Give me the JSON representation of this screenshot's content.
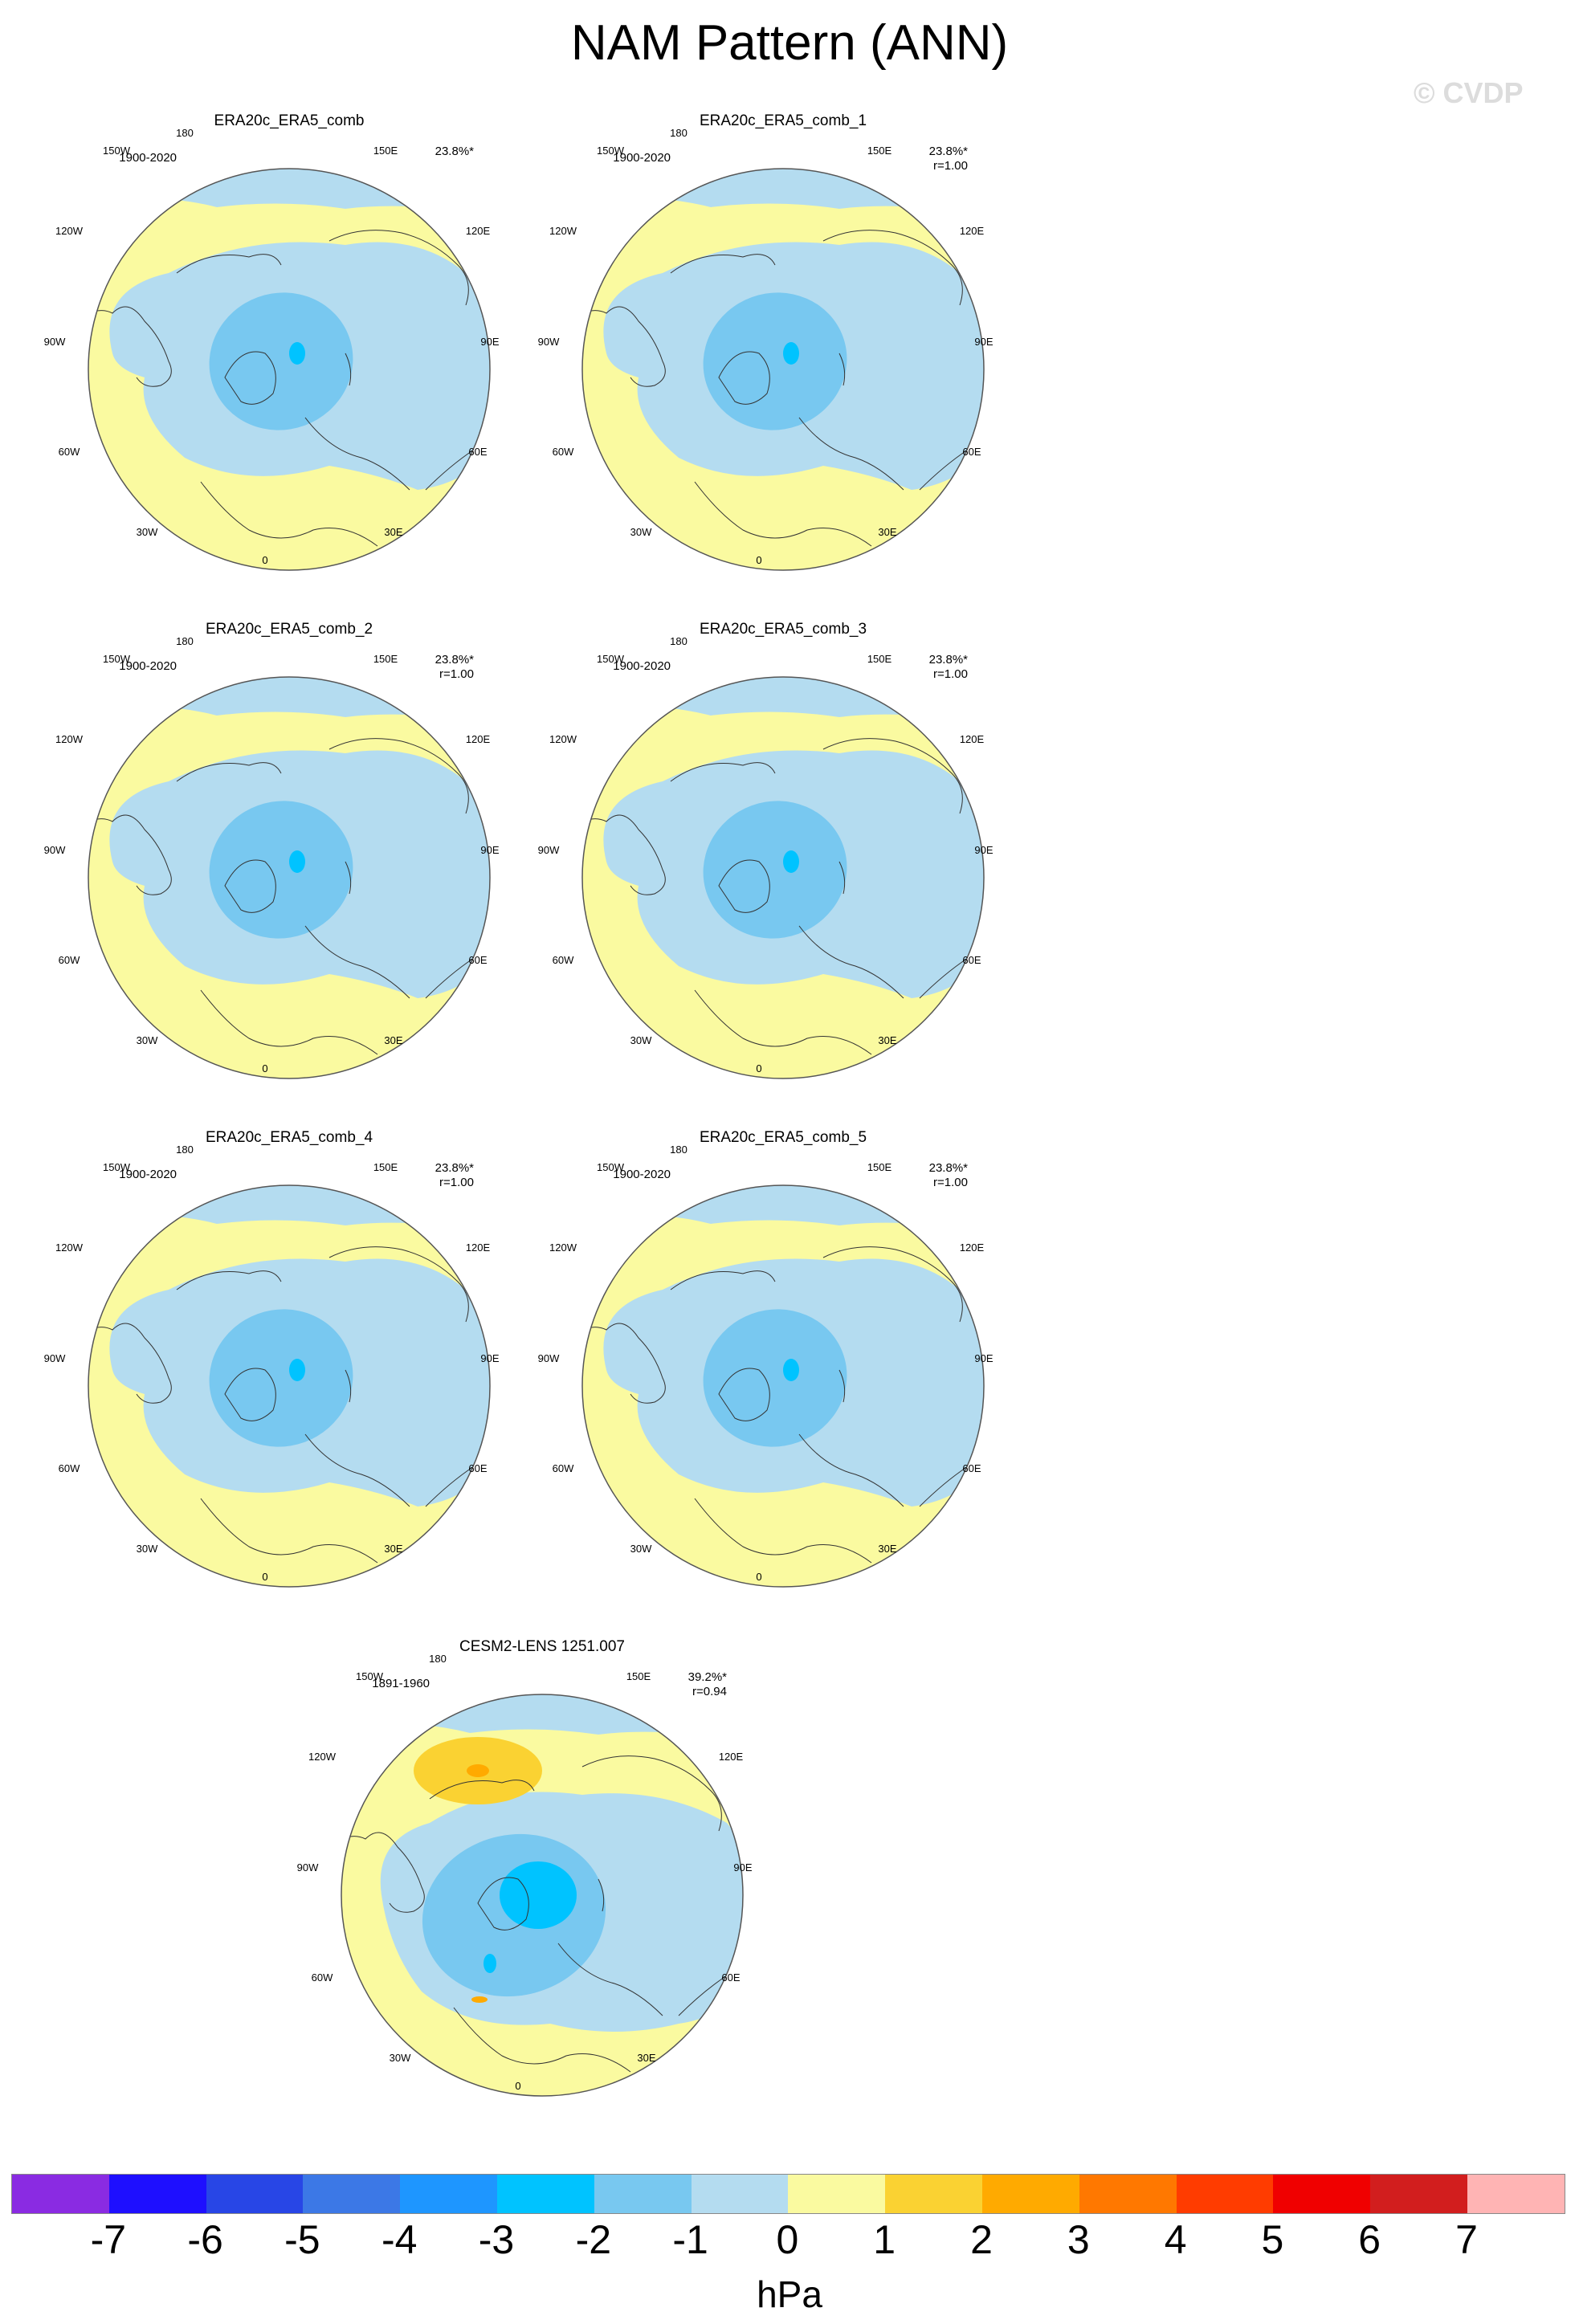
{
  "title": "NAM Pattern (ANN)",
  "watermark": "© CVDP",
  "lon_labels": {
    "l180": "180",
    "l150w": "150W",
    "l150e": "150E",
    "l120w": "120W",
    "l120e": "120E",
    "l90w": "90W",
    "l90e": "90E",
    "l60w": "60W",
    "l60e": "60E",
    "l30w": "30W",
    "l30e": "30E",
    "l0": "0"
  },
  "panels": [
    {
      "name": "ERA20c_ERA5_comb",
      "years": "1900-2020",
      "pct": "23.8%*",
      "r": "",
      "variant": "era"
    },
    {
      "name": "ERA20c_ERA5_comb_1",
      "years": "1900-2020",
      "pct": "23.8%*",
      "r": "r=1.00",
      "variant": "era"
    },
    {
      "name": "ERA20c_ERA5_comb_2",
      "years": "1900-2020",
      "pct": "23.8%*",
      "r": "r=1.00",
      "variant": "era"
    },
    {
      "name": "ERA20c_ERA5_comb_3",
      "years": "1900-2020",
      "pct": "23.8%*",
      "r": "r=1.00",
      "variant": "era"
    },
    {
      "name": "ERA20c_ERA5_comb_4",
      "years": "1900-2020",
      "pct": "23.8%*",
      "r": "r=1.00",
      "variant": "era"
    },
    {
      "name": "ERA20c_ERA5_comb_5",
      "years": "1900-2020",
      "pct": "23.8%*",
      "r": "r=1.00",
      "variant": "era"
    },
    {
      "name": "CESM2-LENS 1251.007",
      "years": "1891-1960",
      "pct": "39.2%*",
      "r": "r=0.94",
      "variant": "cesm"
    }
  ],
  "colorbar": {
    "colors": [
      "#8a2be2",
      "#1e0fff",
      "#2846e6",
      "#3c78e6",
      "#1e96ff",
      "#00c3ff",
      "#78c8f0",
      "#b4dcf0",
      "#fafaa0",
      "#fad232",
      "#ffaa00",
      "#ff7800",
      "#ff3c00",
      "#f00000",
      "#d21e1e",
      "#ffb4b4"
    ],
    "labels": [
      "-7",
      "-6",
      "-5",
      "-4",
      "-3",
      "-2",
      "-1",
      "0",
      "1",
      "2",
      "3",
      "4",
      "5",
      "6",
      "7"
    ],
    "units": "hPa"
  },
  "legend_colors": {
    "pos_weak": "#fafaa0",
    "neg_weak": "#b4dcf0",
    "neg_mod": "#78c8f0",
    "neg_strong": "#00c3ff",
    "pos_mod": "#fad232",
    "pos_strong": "#ffaa00"
  }
}
